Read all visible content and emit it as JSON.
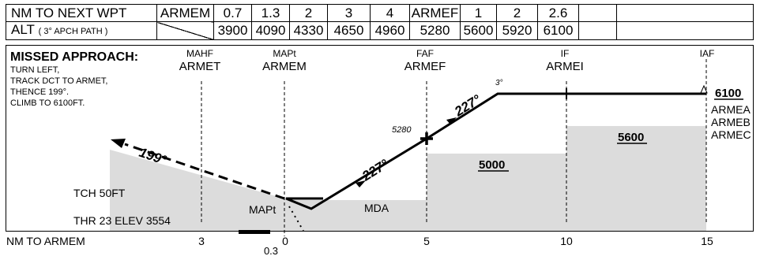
{
  "header": {
    "row1_label": "NM TO NEXT WPT",
    "row1": [
      "ARMEM",
      "0.7",
      "1.3",
      "2",
      "3",
      "4",
      "ARMEF",
      "1",
      "2",
      "2.6",
      "",
      ""
    ],
    "row2_label_main": "ALT",
    "row2_label_sub": "( 3° APCH PATH )",
    "row2": [
      "",
      "3900",
      "4090",
      "4330",
      "4650",
      "4960",
      "5280",
      "5600",
      "5920",
      "6100",
      "",
      ""
    ]
  },
  "missed_approach": {
    "title": "MISSED APPROACH:",
    "lines": [
      "TURN LEFT,",
      "TRACK DCT TO ARMET,",
      "THENCE 199°.",
      "CLIMB TO 6100FT."
    ]
  },
  "fixes": {
    "mahf_role": "MAHF",
    "mahf_name": "ARMET",
    "mapt_role": "MAPt",
    "mapt_name": "ARMEM",
    "faf_role": "FAF",
    "faf_name": "ARMEF",
    "if_role": "IF",
    "if_name": "ARMEI",
    "iaf_role": "IAF"
  },
  "iaf_names": [
    "ARMEA",
    "ARMEB",
    "ARMEC"
  ],
  "labels": {
    "glide_angle": "3°",
    "faf_alt": "5280",
    "course_final": "227°",
    "course_missed": "199°",
    "init_alt": "6100",
    "alt_5600": "5600",
    "alt_5000": "5000",
    "mda": "MDA",
    "mapt_label": "MAPt",
    "tch": "TCH 50FT",
    "thr": "THR 23 ELEV 3554"
  },
  "axis": {
    "title": "NM TO ARMEM",
    "ticks": [
      "3",
      "0",
      "5",
      "10",
      "15"
    ],
    "extra_tick": "0.3"
  },
  "colors": {
    "terrain": "#dcdcdc",
    "line": "#000000"
  }
}
